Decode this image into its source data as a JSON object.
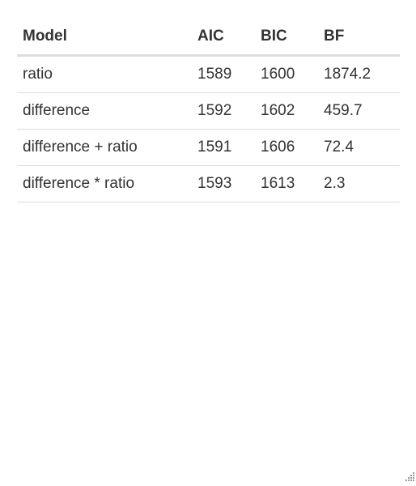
{
  "table": {
    "headers": [
      "Model",
      "AIC",
      "BIC",
      "BF"
    ],
    "rows": [
      [
        "ratio",
        "1589",
        "1600",
        "1874.2"
      ],
      [
        "difference",
        "1592",
        "1602",
        "459.7"
      ],
      [
        "difference + ratio",
        "1591",
        "1606",
        "72.4"
      ],
      [
        "difference * ratio",
        "1593",
        "1613",
        "2.3"
      ]
    ]
  },
  "icons": {
    "resize": "resize-grip-icon"
  }
}
